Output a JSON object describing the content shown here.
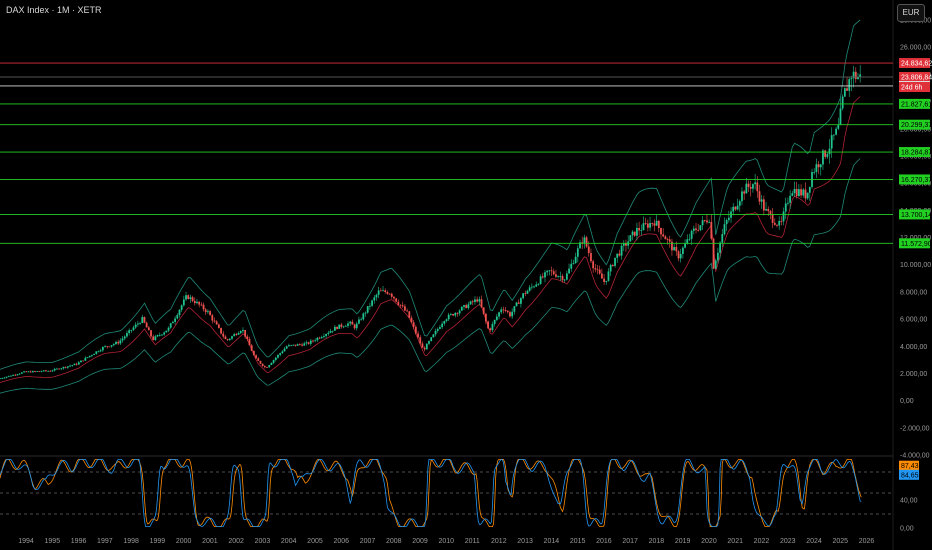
{
  "header": {
    "title": "DAX Index · 1M · XETR",
    "currency": "EUR"
  },
  "chart_data": {
    "type": "candlestick",
    "x_start": 1993,
    "x_end": 2027,
    "year_ticks": [
      "1994",
      "1995",
      "1996",
      "1997",
      "1998",
      "1999",
      "2000",
      "2001",
      "2002",
      "2003",
      "2004",
      "2005",
      "2006",
      "2007",
      "2008",
      "2009",
      "2010",
      "2011",
      "2012",
      "2013",
      "2014",
      "2015",
      "2016",
      "2017",
      "2018",
      "2019",
      "2020",
      "2021",
      "2022",
      "2023",
      "2024",
      "2025",
      "2026"
    ],
    "price_axis": {
      "ylim": [
        -4000,
        28000
      ],
      "ticks": [
        {
          "value": 28000,
          "label": "28.000,00"
        },
        {
          "value": 26000,
          "label": "26.000,00"
        },
        {
          "value": 24000,
          "label": "24.000,00"
        },
        {
          "value": 22000,
          "label": "22.000,00"
        },
        {
          "value": 20000,
          "label": "20.000,00"
        },
        {
          "value": 18000,
          "label": "18.000,00"
        },
        {
          "value": 16000,
          "label": "16.000,00"
        },
        {
          "value": 14000,
          "label": "14.000,00"
        },
        {
          "value": 12000,
          "label": "12.000,00"
        },
        {
          "value": 10000,
          "label": "10.000,00"
        },
        {
          "value": 8000,
          "label": "8.000,00"
        },
        {
          "value": 6000,
          "label": "6.000,00"
        },
        {
          "value": 4000,
          "label": "4.000,00"
        },
        {
          "value": 2000,
          "label": "2.000,00"
        },
        {
          "value": 0,
          "label": "0,00"
        },
        {
          "value": -2000,
          "label": "-2.000,00"
        },
        {
          "value": -4000,
          "label": "-4.000,00"
        }
      ]
    },
    "price_path": [
      [
        1993.0,
        1600
      ],
      [
        1994.0,
        2100
      ],
      [
        1995.0,
        2200
      ],
      [
        1996.0,
        2700
      ],
      [
        1997.0,
        3900
      ],
      [
        1997.6,
        4300
      ],
      [
        1998.5,
        6000
      ],
      [
        1998.9,
        4500
      ],
      [
        1999.5,
        5300
      ],
      [
        2000.2,
        7700
      ],
      [
        2000.5,
        7300
      ],
      [
        2001.0,
        6500
      ],
      [
        2001.7,
        4400
      ],
      [
        2002.3,
        5300
      ],
      [
        2002.8,
        3100
      ],
      [
        2003.2,
        2400
      ],
      [
        2004.0,
        4000
      ],
      [
        2004.8,
        4200
      ],
      [
        2005.9,
        5400
      ],
      [
        2006.4,
        5700
      ],
      [
        2006.6,
        5400
      ],
      [
        2007.5,
        8000
      ],
      [
        2007.9,
        8000
      ],
      [
        2008.6,
        6400
      ],
      [
        2009.2,
        3700
      ],
      [
        2010.0,
        6000
      ],
      [
        2011.3,
        7500
      ],
      [
        2011.7,
        5100
      ],
      [
        2012.2,
        6900
      ],
      [
        2012.5,
        6300
      ],
      [
        2013.0,
        7800
      ],
      [
        2014.0,
        9500
      ],
      [
        2014.6,
        9000
      ],
      [
        2015.3,
        12000
      ],
      [
        2015.7,
        9800
      ],
      [
        2016.1,
        8700
      ],
      [
        2016.5,
        10500
      ],
      [
        2017.3,
        12500
      ],
      [
        2018.0,
        13200
      ],
      [
        2018.9,
        10600
      ],
      [
        2019.5,
        12500
      ],
      [
        2020.1,
        13500
      ],
      [
        2020.25,
        9900
      ],
      [
        2020.7,
        13000
      ],
      [
        2021.4,
        15500
      ],
      [
        2021.8,
        16000
      ],
      [
        2022.2,
        14000
      ],
      [
        2022.8,
        12800
      ],
      [
        2023.2,
        15600
      ],
      [
        2023.8,
        15100
      ],
      [
        2024.0,
        16800
      ],
      [
        2024.6,
        18500
      ],
      [
        2025.0,
        20000
      ],
      [
        2025.2,
        22400
      ],
      [
        2025.5,
        24000
      ],
      [
        2025.8,
        23800
      ]
    ],
    "middle_band_offset": -700,
    "upper_band_offset": 1400,
    "lower_band_offset": -2400,
    "horizontal_levels": [
      {
        "value": 24834.62,
        "label": "24.834,62",
        "color": "#e0303a",
        "line": "#e0303a"
      },
      {
        "value": 23806.84,
        "label": "23.806,84",
        "color": "#e0303a",
        "line": "#555555"
      },
      {
        "value": 23145.8,
        "label": "23.145,80",
        "color": "#dddddd",
        "line": "#dddddd"
      },
      {
        "value": 21827.61,
        "label": "21.827,61",
        "color": "#22d022",
        "line": "#22d022"
      },
      {
        "value": 20299.37,
        "label": "20.299,37",
        "color": "#22d022",
        "line": "#22d022"
      },
      {
        "value": 18284.87,
        "label": "18.284,87",
        "color": "#22d022",
        "line": "#22d022"
      },
      {
        "value": 16270.37,
        "label": "16.270,37",
        "color": "#22d022",
        "line": "#22d022"
      },
      {
        "value": 13700.14,
        "label": "13.700,14",
        "color": "#22d022",
        "line": "#22d022"
      },
      {
        "value": 11572.9,
        "label": "11.572,90",
        "color": "#22d022",
        "line": "#22d022"
      }
    ],
    "countdown_label": "24d 6h",
    "oscillator": {
      "ylim": [
        0,
        100
      ],
      "ticks": [
        {
          "value": 40,
          "label": "40,00"
        },
        {
          "value": 0,
          "label": "0,00"
        }
      ],
      "dashed_levels": [
        80,
        50,
        20
      ],
      "k_label": "87,43",
      "d_label": "84,65",
      "k_color": "#2196f3",
      "d_color": "#ff8c00"
    }
  },
  "colors": {
    "up": "#26a69a",
    "up_bright": "#21c38f",
    "down": "#ef5350",
    "band": "#1f8a78",
    "ma": "#b22234",
    "support_line": "#22d022",
    "resistance_line": "#e0303a"
  }
}
